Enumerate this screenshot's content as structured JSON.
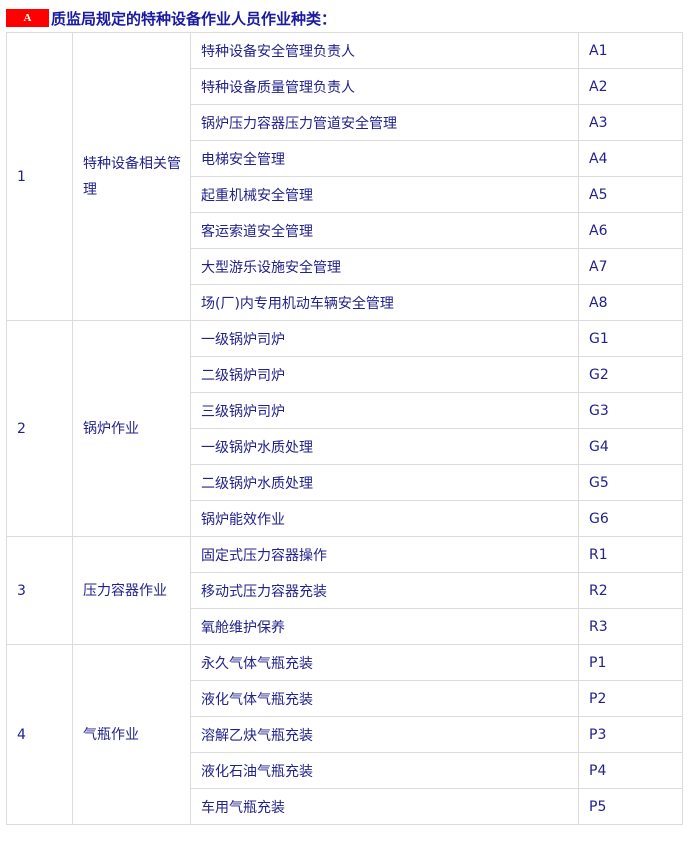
{
  "heading": {
    "badge": "A",
    "title": "质监局规定的特种设备作业人员作业种类："
  },
  "groups": [
    {
      "no": "1",
      "name": "特种设备相关管理",
      "items": [
        {
          "name": "特种设备安全管理负责人",
          "code": "A1"
        },
        {
          "name": "特种设备质量管理负责人",
          "code": "A2"
        },
        {
          "name": "锅炉压力容器压力管道安全管理",
          "code": "A3"
        },
        {
          "name": "电梯安全管理",
          "code": "A4"
        },
        {
          "name": "起重机械安全管理",
          "code": "A5"
        },
        {
          "name": "客运索道安全管理",
          "code": "A6"
        },
        {
          "name": "大型游乐设施安全管理",
          "code": "A7"
        },
        {
          "name": "场(厂)内专用机动车辆安全管理",
          "code": "A8"
        }
      ]
    },
    {
      "no": "2",
      "name": "锅炉作业",
      "items": [
        {
          "name": "一级锅炉司炉",
          "code": "G1"
        },
        {
          "name": "二级锅炉司炉",
          "code": "G2"
        },
        {
          "name": "三级锅炉司炉",
          "code": "G3"
        },
        {
          "name": "一级锅炉水质处理",
          "code": "G4"
        },
        {
          "name": "二级锅炉水质处理",
          "code": "G5"
        },
        {
          "name": "锅炉能效作业",
          "code": "G6"
        }
      ]
    },
    {
      "no": "3",
      "name": "压力容器作业",
      "items": [
        {
          "name": "固定式压力容器操作",
          "code": "R1"
        },
        {
          "name": "移动式压力容器充装",
          "code": "R2"
        },
        {
          "name": "氧舱维护保养",
          "code": "R3"
        }
      ]
    },
    {
      "no": "4",
      "name": "气瓶作业",
      "items": [
        {
          "name": "永久气体气瓶充装",
          "code": "P1"
        },
        {
          "name": "液化气体气瓶充装",
          "code": "P2"
        },
        {
          "name": "溶解乙炔气瓶充装",
          "code": "P3"
        },
        {
          "name": "液化石油气瓶充装",
          "code": "P4"
        },
        {
          "name": "车用气瓶充装",
          "code": "P5"
        }
      ]
    }
  ]
}
